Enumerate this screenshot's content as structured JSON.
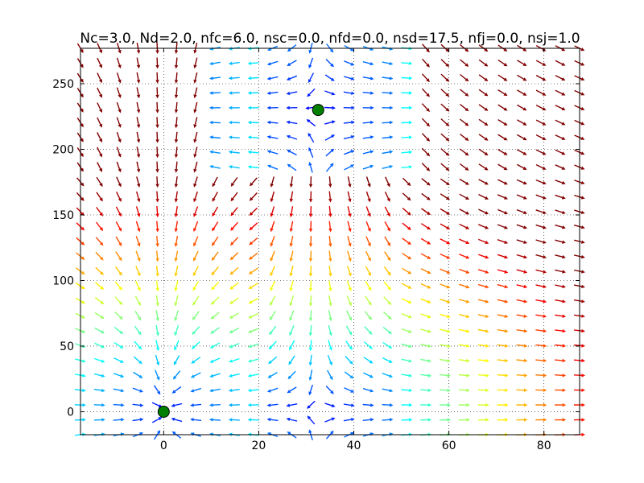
{
  "chart_data": {
    "type": "quiver",
    "title": "Nc=3.0, Nd=2.0, nfc=6.0, nsc=0.0, nfd=0.0, nsd=17.5, nfj=0.0, nsj=1.0",
    "xlabel": "",
    "ylabel": "",
    "xlim": [
      -17.5,
      87.5
    ],
    "ylim": [
      -17.5,
      277
    ],
    "x_ticks": [
      0,
      20,
      40,
      60,
      80
    ],
    "y_ticks": [
      0,
      50,
      100,
      150,
      200,
      250
    ],
    "x_tick_labels": [
      "0",
      "20",
      "40",
      "60",
      "80"
    ],
    "y_tick_labels": [
      "0",
      "50",
      "100",
      "150",
      "200",
      "250"
    ],
    "grid": true,
    "grid_style": "dotted",
    "colormap": "jet",
    "field": {
      "x_range": [
        -17.5,
        87.5
      ],
      "y_range": [
        -17.5,
        277
      ],
      "columns": 27,
      "rows": 27
    },
    "fixed_points": [
      {
        "x": 0,
        "y": 0
      },
      {
        "x": 32.5,
        "y": 230
      }
    ],
    "point_color": "#008000"
  }
}
